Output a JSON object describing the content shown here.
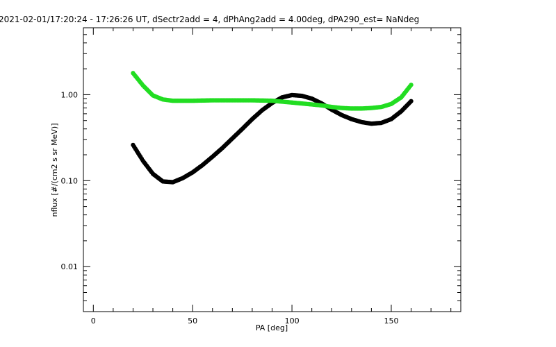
{
  "chart_data": {
    "type": "scatter",
    "title": "2021-02-01/17:20:24 - 17:26:26 UT, dSectr2add = 4, dPhAng2add = 4.00deg, dPA290_est=    NaNdeg",
    "xlabel": "PA [deg]",
    "ylabel": "nflux [#/(cm2 s sr MeV)]",
    "xlim": [
      -5,
      185
    ],
    "ylim": [
      0.003,
      6
    ],
    "yscale": "log",
    "xticks": [
      0,
      50,
      100,
      150
    ],
    "xtick_labels": [
      "0",
      "50",
      "100",
      "150"
    ],
    "yticks": [
      0.01,
      0.1,
      1.0
    ],
    "ytick_labels": [
      "0.01",
      "0.10",
      "1.00"
    ],
    "grid": false,
    "legend": "none",
    "series": [
      {
        "color": "#000000",
        "x": [
          20,
          25,
          30,
          35,
          40,
          45,
          50,
          55,
          60,
          65,
          70,
          75,
          80,
          85,
          90,
          95,
          100,
          105,
          110,
          115,
          120,
          125,
          130,
          135,
          140,
          145,
          150,
          155,
          160
        ],
        "y": [
          0.26,
          0.17,
          0.12,
          0.098,
          0.096,
          0.107,
          0.125,
          0.152,
          0.19,
          0.24,
          0.31,
          0.4,
          0.52,
          0.66,
          0.8,
          0.93,
          0.99,
          0.97,
          0.9,
          0.79,
          0.67,
          0.58,
          0.52,
          0.48,
          0.46,
          0.47,
          0.52,
          0.64,
          0.84
        ]
      },
      {
        "color": "#22dd22",
        "x": [
          20,
          25,
          30,
          35,
          40,
          45,
          50,
          55,
          60,
          65,
          70,
          75,
          80,
          85,
          90,
          95,
          100,
          105,
          110,
          115,
          120,
          125,
          130,
          135,
          140,
          145,
          150,
          155,
          160
        ],
        "y": [
          1.78,
          1.28,
          0.98,
          0.88,
          0.85,
          0.85,
          0.85,
          0.855,
          0.86,
          0.86,
          0.86,
          0.86,
          0.86,
          0.855,
          0.85,
          0.83,
          0.81,
          0.79,
          0.77,
          0.75,
          0.72,
          0.7,
          0.69,
          0.69,
          0.7,
          0.72,
          0.78,
          0.93,
          1.3
        ]
      }
    ]
  },
  "colors": {
    "axis": "#000000",
    "background": "#ffffff"
  }
}
